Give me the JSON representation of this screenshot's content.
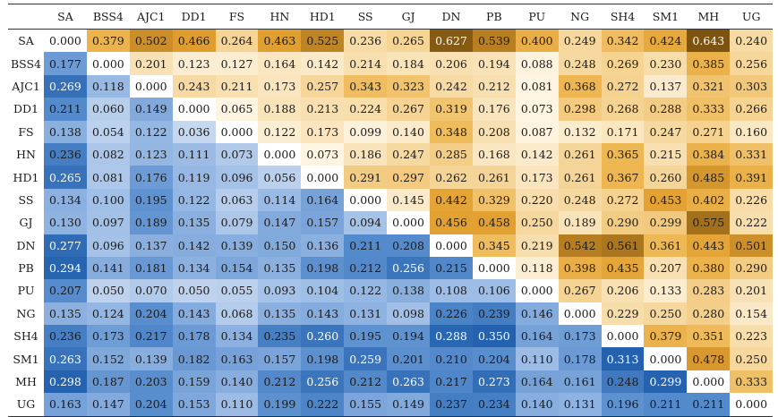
{
  "chart_data": {
    "type": "heatmap",
    "columns": [
      "SA",
      "BSS4",
      "AJC1",
      "DD1",
      "FS",
      "HN",
      "HD1",
      "SS",
      "GJ",
      "DN",
      "PB",
      "PU",
      "NG",
      "SH4",
      "SM1",
      "MH",
      "UG"
    ],
    "rows": [
      "SA",
      "BSS4",
      "AJC1",
      "DD1",
      "FS",
      "HN",
      "HD1",
      "SS",
      "GJ",
      "DN",
      "PB",
      "PU",
      "NG",
      "SH4",
      "SM1",
      "MH",
      "UG"
    ],
    "values": [
      [
        "0.000",
        "0.379",
        "0.502",
        "0.466",
        "0.264",
        "0.463",
        "0.525",
        "0.236",
        "0.265",
        "0.627",
        "0.539",
        "0.400",
        "0.249",
        "0.342",
        "0.424",
        "0.643",
        "0.240"
      ],
      [
        "0.177",
        "0.000",
        "0.201",
        "0.123",
        "0.127",
        "0.164",
        "0.142",
        "0.214",
        "0.184",
        "0.206",
        "0.194",
        "0.088",
        "0.248",
        "0.269",
        "0.230",
        "0.385",
        "0.256"
      ],
      [
        "0.269",
        "0.118",
        "0.000",
        "0.243",
        "0.211",
        "0.173",
        "0.257",
        "0.343",
        "0.323",
        "0.242",
        "0.212",
        "0.081",
        "0.368",
        "0.272",
        "0.137",
        "0.321",
        "0.303"
      ],
      [
        "0.211",
        "0.060",
        "0.149",
        "0.000",
        "0.065",
        "0.188",
        "0.213",
        "0.224",
        "0.267",
        "0.319",
        "0.176",
        "0.073",
        "0.298",
        "0.268",
        "0.288",
        "0.333",
        "0.266"
      ],
      [
        "0.138",
        "0.054",
        "0.122",
        "0.036",
        "0.000",
        "0.122",
        "0.173",
        "0.099",
        "0.140",
        "0.348",
        "0.208",
        "0.087",
        "0.132",
        "0.171",
        "0.247",
        "0.271",
        "0.160"
      ],
      [
        "0.236",
        "0.082",
        "0.123",
        "0.111",
        "0.073",
        "0.000",
        "0.073",
        "0.186",
        "0.247",
        "0.285",
        "0.168",
        "0.142",
        "0.261",
        "0.365",
        "0.215",
        "0.384",
        "0.331"
      ],
      [
        "0.265",
        "0.081",
        "0.176",
        "0.119",
        "0.096",
        "0.056",
        "0.000",
        "0.291",
        "0.297",
        "0.262",
        "0.261",
        "0.173",
        "0.261",
        "0.367",
        "0.260",
        "0.485",
        "0.391"
      ],
      [
        "0.134",
        "0.100",
        "0.195",
        "0.122",
        "0.063",
        "0.114",
        "0.164",
        "0.000",
        "0.145",
        "0.442",
        "0.329",
        "0.220",
        "0.248",
        "0.272",
        "0.453",
        "0.402",
        "0.226"
      ],
      [
        "0.130",
        "0.097",
        "0.189",
        "0.135",
        "0.079",
        "0.147",
        "0.157",
        "0.094",
        "0.000",
        "0.456",
        "0.458",
        "0.250",
        "0.189",
        "0.290",
        "0.299",
        "0.575",
        "0.222"
      ],
      [
        "0.277",
        "0.096",
        "0.137",
        "0.142",
        "0.139",
        "0.150",
        "0.136",
        "0.211",
        "0.208",
        "0.000",
        "0.345",
        "0.219",
        "0.542",
        "0.561",
        "0.361",
        "0.443",
        "0.501"
      ],
      [
        "0.294",
        "0.141",
        "0.181",
        "0.134",
        "0.154",
        "0.135",
        "0.198",
        "0.212",
        "0.256",
        "0.215",
        "0.000",
        "0.118",
        "0.398",
        "0.435",
        "0.207",
        "0.380",
        "0.290"
      ],
      [
        "0.207",
        "0.050",
        "0.070",
        "0.050",
        "0.055",
        "0.093",
        "0.104",
        "0.122",
        "0.138",
        "0.108",
        "0.106",
        "0.000",
        "0.267",
        "0.206",
        "0.133",
        "0.283",
        "0.201"
      ],
      [
        "0.135",
        "0.124",
        "0.204",
        "0.143",
        "0.068",
        "0.135",
        "0.143",
        "0.131",
        "0.098",
        "0.226",
        "0.239",
        "0.146",
        "0.000",
        "0.229",
        "0.250",
        "0.280",
        "0.154"
      ],
      [
        "0.236",
        "0.173",
        "0.217",
        "0.178",
        "0.134",
        "0.235",
        "0.260",
        "0.195",
        "0.194",
        "0.288",
        "0.350",
        "0.164",
        "0.173",
        "0.000",
        "0.379",
        "0.351",
        "0.223"
      ],
      [
        "0.263",
        "0.152",
        "0.139",
        "0.182",
        "0.163",
        "0.157",
        "0.198",
        "0.259",
        "0.201",
        "0.210",
        "0.204",
        "0.110",
        "0.178",
        "0.313",
        "0.000",
        "0.478",
        "0.250"
      ],
      [
        "0.298",
        "0.187",
        "0.203",
        "0.159",
        "0.140",
        "0.212",
        "0.256",
        "0.212",
        "0.263",
        "0.217",
        "0.273",
        "0.164",
        "0.161",
        "0.248",
        "0.299",
        "0.000",
        "0.333"
      ],
      [
        "0.163",
        "0.147",
        "0.204",
        "0.153",
        "0.110",
        "0.199",
        "0.222",
        "0.155",
        "0.149",
        "0.237",
        "0.234",
        "0.140",
        "0.131",
        "0.196",
        "0.211",
        "0.211",
        "0.000"
      ]
    ],
    "colors": {
      "lower_triangle_scale": "blue",
      "upper_triangle_scale": "orange",
      "diagonal": "#ffffff"
    }
  }
}
